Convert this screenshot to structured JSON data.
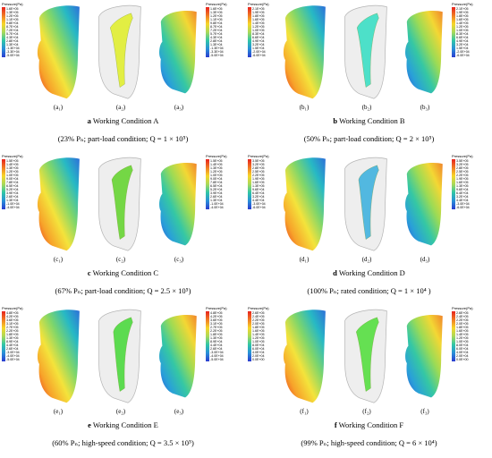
{
  "panels": [
    {
      "subs": [
        "(a₁)",
        "(a₂)",
        "(a₃)"
      ],
      "label": "(a)",
      "title": "Working Condition A",
      "desc": "(23% Pₙ; part-load condition; Q = 1 × 10⁵)",
      "ticks": [
        "1.6E+05",
        "1.3E+05",
        "1.2E+05",
        "1.1E+05",
        "9.8E+04",
        "8.7E+04",
        "7.2E+04",
        "5.7E+04",
        "4.3E+04",
        "2.8E+04",
        "1.3E+04",
        "-1.3E+04",
        "-3.3E+04",
        "-5.0E+04"
      ]
    },
    {
      "subs": [
        "(b₁)",
        "(b₂)",
        "(b₃)"
      ],
      "label": "(b)",
      "title": "Working Condition B",
      "desc": "(50% Pₙ; part-load condition; Q = 2 × 10⁵)",
      "ticks": [
        "2.1E+05",
        "1.9E+05",
        "1.8E+05",
        "1.6E+05",
        "1.4E+05",
        "1.2E+05",
        "1.0E+05",
        "8.3E+04",
        "6.6E+04",
        "4.9E+04",
        "3.2E+04",
        "1.5E+04",
        "-2.0E+04",
        "-6.0E+04"
      ]
    },
    {
      "subs": [
        "(c₁)",
        "(c₂)",
        "(c₃)"
      ],
      "label": "(c)",
      "title": "Working Condition C",
      "desc": "(67% Pₙ; part-load condition; Q = 2.5 × 10⁵)",
      "ticks": [
        "1.5E+05",
        "1.4E+05",
        "1.3E+05",
        "1.2E+05",
        "1.0E+05",
        "9.0E+04",
        "7.8E+04",
        "6.5E+04",
        "5.2E+04",
        "3.9E+04",
        "2.6E+04",
        "1.3E+04",
        "-1.0E+04",
        "-4.0E+04"
      ]
    },
    {
      "subs": [
        "(d₁)",
        "(d₂)",
        "(d₃)"
      ],
      "label": "(d)",
      "title": "Working Condition D",
      "desc": "(100% Pₙ; rated condition; Q = 1 × 10⁴ )",
      "ticks": [
        "3.5E+05",
        "3.2E+05",
        "2.8E+05",
        "2.5E+05",
        "2.2E+05",
        "1.9E+05",
        "1.6E+05",
        "1.3E+05",
        "9.6E+04",
        "6.4E+04",
        "3.2E+04",
        "4.4E+04",
        "-3.0E+04",
        "-6.0E+04"
      ]
    },
    {
      "subs": [
        "(e₁)",
        "(e₂)",
        "(e₃)"
      ],
      "label": "(e)",
      "title": "Working Condition E",
      "desc": "(60% Pₙ; high-speed condition; Q = 3.5 × 10⁵)",
      "ticks": [
        "4.8E+05",
        "4.2E+05",
        "3.6E+05",
        "3.1E+05",
        "2.7E+05",
        "2.2E+05",
        "1.8E+05",
        "1.3E+05",
        "8.9E+04",
        "4.4E+04",
        "2.6E+04",
        "-3.0E+04",
        "-4.0E+04",
        "-5.0E+04"
      ]
    },
    {
      "subs": [
        "(f₁)",
        "(f₂)",
        "(f₃)"
      ],
      "label": "(f)",
      "title": "Working Condition F",
      "desc": "(99% Pₙ; high-speed condition; Q = 6 × 10⁴)",
      "ticks": [
        "2.6E+05",
        "2.4E+05",
        "2.2E+05",
        "2.0E+05",
        "1.8E+05",
        "1.6E+05",
        "1.4E+05",
        "1.2E+05",
        "1.0E+05",
        "8.0E+04",
        "6.0E+04",
        "4.0E+04",
        "2.0E+04",
        "0.0E+00"
      ]
    }
  ],
  "colorbar_title": "Pressure(Pa)",
  "iso_colors": [
    "#e2ee3a",
    "#45e0c8",
    "#6ed63c",
    "#4ab6e0",
    "#55db48",
    "#5ee04a"
  ]
}
